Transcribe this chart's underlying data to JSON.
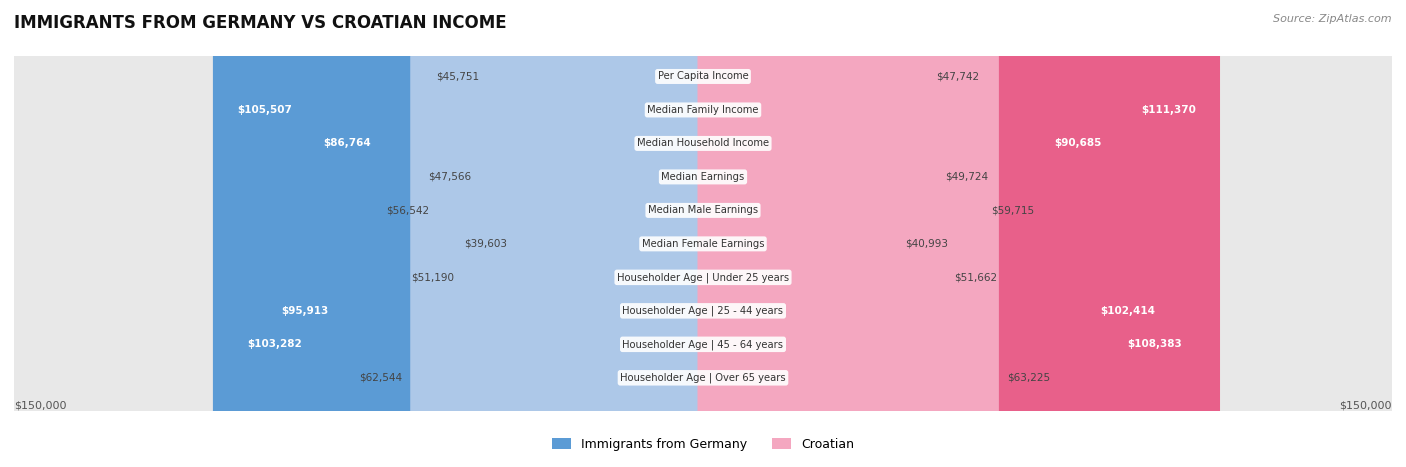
{
  "title": "IMMIGRANTS FROM GERMANY VS CROATIAN INCOME",
  "source": "Source: ZipAtlas.com",
  "categories": [
    "Per Capita Income",
    "Median Family Income",
    "Median Household Income",
    "Median Earnings",
    "Median Male Earnings",
    "Median Female Earnings",
    "Householder Age | Under 25 years",
    "Householder Age | 25 - 44 years",
    "Householder Age | 45 - 64 years",
    "Householder Age | Over 65 years"
  ],
  "germany_values": [
    45751,
    105507,
    86764,
    47566,
    56542,
    39603,
    51190,
    95913,
    103282,
    62544
  ],
  "croatian_values": [
    47742,
    111370,
    90685,
    49724,
    59715,
    40993,
    51662,
    102414,
    108383,
    63225
  ],
  "germany_labels": [
    "$45,751",
    "$105,507",
    "$86,764",
    "$47,566",
    "$56,542",
    "$39,603",
    "$51,190",
    "$95,913",
    "$103,282",
    "$62,544"
  ],
  "croatian_labels": [
    "$47,742",
    "$111,370",
    "$90,685",
    "$49,724",
    "$59,715",
    "$40,993",
    "$51,662",
    "$102,414",
    "$108,383",
    "$63,225"
  ],
  "germany_color_light": "#adc8e8",
  "germany_color_dark": "#5b9bd5",
  "croatian_color_light": "#f4a7c0",
  "croatian_color_dark": "#e8608a",
  "max_value": 150000,
  "background_color": "#ffffff",
  "legend_germany": "Immigrants from Germany",
  "legend_croatian": "Croatian",
  "germany_dark_threshold": 80000,
  "croatian_dark_threshold": 80000,
  "row_bg_even": "#f0f0f0",
  "row_bg_odd": "#e8e8e8"
}
